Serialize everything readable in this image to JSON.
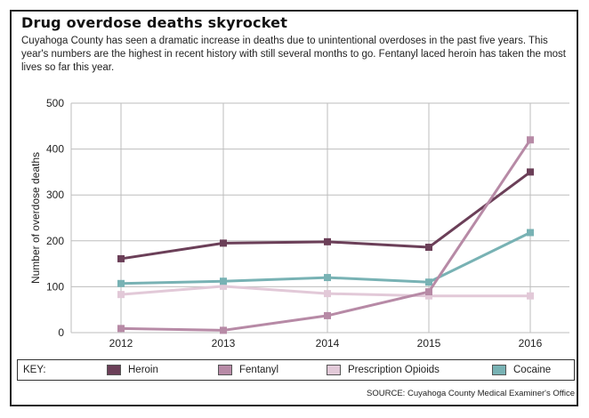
{
  "chart_data": {
    "type": "line",
    "title": "Drug overdose deaths skyrocket",
    "subtitle": "Cuyahoga County has seen a dramatic increase in deaths due to unintentional overdoses in the past five years. This year's numbers are the highest in recent history with still several months to go. Fentanyl laced heroin has taken the most lives so far this year.",
    "x": [
      "2012",
      "2013",
      "2014",
      "2015",
      "2016"
    ],
    "ylabel": "Number of overdose deaths",
    "ylim": [
      0,
      500
    ],
    "yticks": [
      0,
      100,
      200,
      300,
      400,
      500
    ],
    "grid": true,
    "series": [
      {
        "name": "Heroin",
        "color": "#6b3f58",
        "values": [
          161,
          195,
          198,
          186,
          350
        ]
      },
      {
        "name": "Fentanyl",
        "color": "#b78aa6",
        "values": [
          9,
          5,
          37,
          89,
          420
        ]
      },
      {
        "name": "Prescription Opioids",
        "color": "#e2c9d8",
        "values": [
          83,
          101,
          85,
          80,
          80
        ]
      },
      {
        "name": "Cocaine",
        "color": "#78b2b4",
        "values": [
          107,
          112,
          120,
          110,
          218
        ]
      }
    ],
    "legend_position": "bottom",
    "key_label": "KEY:",
    "source": "SOURCE: Cuyahoga County Medical Examiner's Office"
  }
}
